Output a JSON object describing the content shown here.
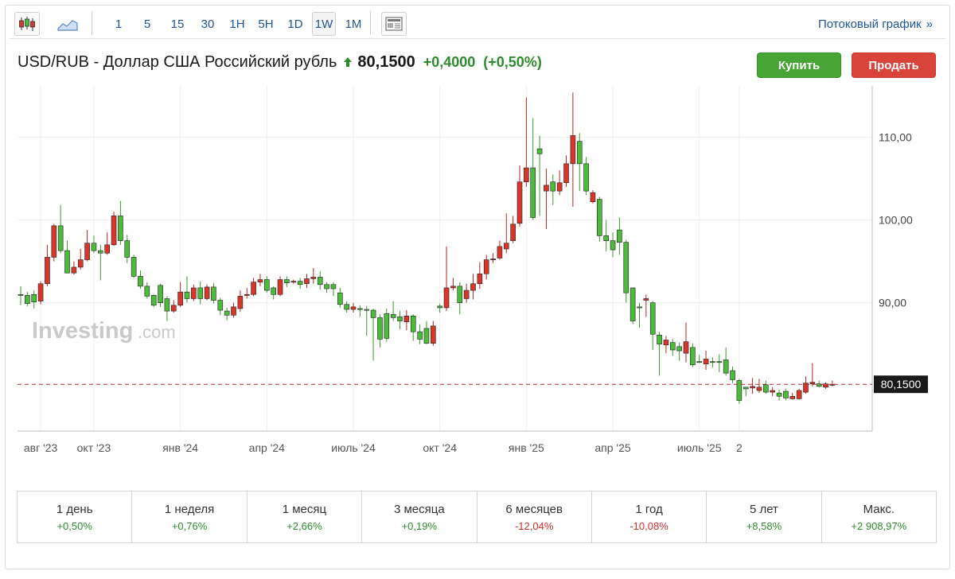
{
  "toolbar": {
    "intervals": [
      {
        "label": "1",
        "active": false
      },
      {
        "label": "5",
        "active": false
      },
      {
        "label": "15",
        "active": false
      },
      {
        "label": "30",
        "active": false
      },
      {
        "label": "1H",
        "active": false
      },
      {
        "label": "5H",
        "active": false
      },
      {
        "label": "1D",
        "active": false
      },
      {
        "label": "1W",
        "active": true
      },
      {
        "label": "1M",
        "active": false
      }
    ],
    "stream_label": "Потоковый график",
    "stream_chevron": "»"
  },
  "header": {
    "title": "USD/RUB - Доллар США Российский рубль",
    "price": "80,1500",
    "change": "+0,4000",
    "change_pct": "(+0,50%)"
  },
  "actions": {
    "buy": "Купить",
    "sell": "Продать"
  },
  "watermark": {
    "brand": "Investing",
    "suffix": ".com"
  },
  "colors": {
    "up": "#4cba3b",
    "down": "#d9362b",
    "accent": "#1f5599"
  },
  "chart_data": {
    "type": "candlestick",
    "interval": "1W",
    "y_ticks": [
      "110,00",
      "100,00",
      "90,00"
    ],
    "y_tick_values": [
      110,
      100,
      90
    ],
    "ylim": [
      74.5,
      116.2
    ],
    "x_ticks": [
      {
        "label": "авг '23",
        "index": 3
      },
      {
        "label": "окт '23",
        "index": 11
      },
      {
        "label": "янв '24",
        "index": 24
      },
      {
        "label": "апр '24",
        "index": 37
      },
      {
        "label": "июль '24",
        "index": 50
      },
      {
        "label": "окт '24",
        "index": 63
      },
      {
        "label": "янв '25",
        "index": 76
      },
      {
        "label": "апр '25",
        "index": 89
      },
      {
        "label": "июль '25",
        "index": 102
      },
      {
        "label": "2",
        "index": 108
      }
    ],
    "last_price": 80.15,
    "last_label": "80,1500",
    "candles": [
      [
        91,
        91,
        89.7,
        92
      ],
      [
        89.9,
        90.9,
        89.6,
        91.3
      ],
      [
        90.1,
        91,
        89.3,
        91.5
      ],
      [
        92.3,
        90.2,
        89.8,
        92.6
      ],
      [
        95.5,
        92.3,
        92,
        97
      ],
      [
        99.3,
        95.5,
        95,
        99.5
      ],
      [
        96.3,
        99.3,
        96,
        101.8
      ],
      [
        93.6,
        96.3,
        93.6,
        97.5
      ],
      [
        94.3,
        93.6,
        93.4,
        95
      ],
      [
        95.2,
        94.3,
        94,
        96.5
      ],
      [
        97.2,
        95.2,
        95,
        98.8
      ],
      [
        96.3,
        97.2,
        96,
        98.1
      ],
      [
        96,
        96.3,
        92.7,
        97
      ],
      [
        97,
        96,
        95.8,
        98.5
      ],
      [
        100.5,
        97,
        96.9,
        101
      ],
      [
        97.5,
        100.5,
        97,
        102.3
      ],
      [
        95.5,
        97.5,
        94.8,
        98.2
      ],
      [
        93.2,
        95.5,
        93,
        95.8
      ],
      [
        92,
        93.2,
        91.7,
        93.9
      ],
      [
        90.8,
        92,
        90.5,
        92.5
      ],
      [
        89.7,
        90.9,
        89.5,
        91
      ],
      [
        90,
        92.1,
        89.5,
        92.3
      ],
      [
        89,
        90.5,
        87.8,
        90.8
      ],
      [
        89.7,
        89,
        88.8,
        90.3
      ],
      [
        91.3,
        89.7,
        89.5,
        92.5
      ],
      [
        90.5,
        91.3,
        90,
        93.2
      ],
      [
        91.8,
        90.5,
        90.2,
        92.2
      ],
      [
        90.5,
        91.8,
        89.8,
        92.6
      ],
      [
        91.9,
        90.5,
        90.3,
        92.2
      ],
      [
        90.3,
        91.9,
        89.9,
        92.4
      ],
      [
        89.1,
        90.3,
        88.5,
        90.6
      ],
      [
        88.5,
        89,
        87.9,
        89.4
      ],
      [
        89.5,
        88.5,
        88.2,
        90
      ],
      [
        90.8,
        89.3,
        88.9,
        91.5
      ],
      [
        91,
        90.9,
        90.5,
        91.8
      ],
      [
        92.5,
        91,
        90.8,
        93
      ],
      [
        92.8,
        92.5,
        92,
        93.5
      ],
      [
        91.5,
        92.8,
        91.2,
        93.2
      ],
      [
        91,
        91.8,
        90.4,
        92
      ],
      [
        92.8,
        91,
        90.8,
        93.2
      ],
      [
        92.4,
        92.8,
        91.9,
        93.2
      ],
      [
        92.6,
        92.5,
        92.3,
        92.8
      ],
      [
        92.2,
        92.6,
        91.7,
        93
      ],
      [
        92.9,
        92.3,
        91.8,
        93.5
      ],
      [
        93.1,
        92.9,
        92.3,
        94.2
      ],
      [
        92.2,
        93.1,
        91.6,
        93.8
      ],
      [
        91.7,
        92.2,
        91.2,
        92.5
      ],
      [
        91.7,
        92.2,
        90.8,
        92.5
      ],
      [
        89.8,
        91.2,
        89.4,
        91.8
      ],
      [
        89.2,
        89.8,
        88.8,
        90.2
      ],
      [
        89.5,
        89.2,
        88.8,
        90
      ],
      [
        89.2,
        89.3,
        88.3,
        89.7
      ],
      [
        89.1,
        89.2,
        86,
        89.6
      ],
      [
        88.2,
        89.1,
        83,
        89.3
      ],
      [
        85.6,
        88.2,
        84.6,
        88.6
      ],
      [
        85.7,
        88.7,
        85.3,
        89.3
      ],
      [
        88.2,
        88.6,
        87.8,
        90.2
      ],
      [
        87.8,
        88.3,
        86.8,
        89
      ],
      [
        88.4,
        87.7,
        86.7,
        89.1
      ],
      [
        86.5,
        88.4,
        85.4,
        88.6
      ],
      [
        85.6,
        86.5,
        85,
        87.4
      ],
      [
        85.1,
        86.9,
        85,
        87.8
      ],
      [
        87.2,
        85.1,
        84.8,
        87.8
      ],
      [
        89.4,
        89.6,
        88.8,
        89.9
      ],
      [
        91.8,
        89.4,
        89,
        96.8
      ],
      [
        92,
        91.8,
        91.5,
        93
      ],
      [
        90,
        92,
        88.6,
        92.5
      ],
      [
        91.5,
        90.5,
        90,
        92.3
      ],
      [
        92.3,
        91.5,
        90.4,
        93.5
      ],
      [
        93.5,
        92.3,
        91.7,
        94.9
      ],
      [
        95.2,
        93.5,
        92.8,
        95.8
      ],
      [
        95.3,
        95.2,
        94.8,
        96
      ],
      [
        96.8,
        95.4,
        95.2,
        97.5
      ],
      [
        97.2,
        96.5,
        96,
        100.8
      ],
      [
        99.5,
        97.5,
        97.2,
        100.5
      ],
      [
        104.6,
        99.6,
        99.2,
        106.6
      ],
      [
        106.3,
        104.6,
        104,
        114.8
      ],
      [
        100.3,
        106.3,
        100,
        112.3
      ],
      [
        108,
        108.6,
        100.5,
        110.2
      ],
      [
        104.2,
        103.5,
        98.9,
        106.2
      ],
      [
        103.5,
        104.6,
        101.8,
        105.5
      ],
      [
        104.5,
        103.5,
        103,
        106
      ],
      [
        106.8,
        104.5,
        104,
        107.8
      ],
      [
        110.2,
        106.8,
        101.6,
        115.4
      ],
      [
        106.8,
        109.5,
        103.5,
        110.5
      ],
      [
        103.5,
        106.8,
        103,
        107.6
      ],
      [
        103.3,
        102.2,
        102,
        103.6
      ],
      [
        98.1,
        102.5,
        97.4,
        102.8
      ],
      [
        97.5,
        98.1,
        96.2,
        100
      ],
      [
        96.4,
        97.5,
        95.5,
        98.5
      ],
      [
        97.3,
        98.8,
        95.8,
        100.3
      ],
      [
        91.2,
        97.3,
        90,
        97.6
      ],
      [
        87.8,
        91.8,
        87.4,
        91.7
      ],
      [
        89.4,
        89.5,
        87,
        90
      ],
      [
        90.5,
        90.3,
        88.3,
        91
      ],
      [
        86.2,
        90,
        84.3,
        90.2
      ],
      [
        85,
        86.1,
        81.2,
        86.5
      ],
      [
        85.5,
        84.9,
        83.9,
        86
      ],
      [
        84.3,
        85.2,
        83.6,
        85.6
      ],
      [
        84.2,
        84.7,
        83,
        85.2
      ],
      [
        85.3,
        83.9,
        82.8,
        87.6
      ],
      [
        82.5,
        84.6,
        82.2,
        85.1
      ],
      [
        82.9,
        82.9,
        82.7,
        83.7
      ],
      [
        83.2,
        82.6,
        81.9,
        84.2
      ],
      [
        82.9,
        82.9,
        82.2,
        83.4
      ],
      [
        82.9,
        82.9,
        81.6,
        83.8
      ],
      [
        81.5,
        83.1,
        81.2,
        84.6
      ],
      [
        80.7,
        81.8,
        80.3,
        82.3
      ],
      [
        78.2,
        80.6,
        77.8,
        80.8
      ],
      [
        79.6,
        79.8,
        78.7,
        79.8
      ],
      [
        79.9,
        79.7,
        79,
        80.9
      ],
      [
        79.8,
        79.4,
        79.1,
        80.8
      ],
      [
        79.2,
        80.1,
        79,
        80.6
      ],
      [
        79.4,
        79.2,
        78.7,
        79.8
      ],
      [
        78.7,
        79.1,
        78.2,
        79.5
      ],
      [
        78.5,
        79.3,
        78.2,
        79.6
      ],
      [
        78.7,
        78.4,
        78.3,
        79.1
      ],
      [
        79.4,
        78.4,
        78.3,
        79.6
      ],
      [
        80.3,
        79.2,
        79,
        81.1
      ],
      [
        80.4,
        80.2,
        79.9,
        82.7
      ],
      [
        79.9,
        80.2,
        79.8,
        80.6
      ],
      [
        80.2,
        79.8,
        79.6,
        80.4
      ],
      [
        80.15,
        80.1,
        79.9,
        80.6
      ]
    ]
  },
  "performance": [
    {
      "label": "1 день",
      "value": "+0,50%",
      "dir": "pos"
    },
    {
      "label": "1 неделя",
      "value": "+0,76%",
      "dir": "pos"
    },
    {
      "label": "1 месяц",
      "value": "+2,66%",
      "dir": "pos"
    },
    {
      "label": "3 месяца",
      "value": "+0,19%",
      "dir": "pos"
    },
    {
      "label": "6 месяцев",
      "value": "-12,04%",
      "dir": "neg"
    },
    {
      "label": "1 год",
      "value": "-10,08%",
      "dir": "neg"
    },
    {
      "label": "5 лет",
      "value": "+8,58%",
      "dir": "pos"
    },
    {
      "label": "Макс.",
      "value": "+2 908,97%",
      "dir": "pos"
    }
  ]
}
